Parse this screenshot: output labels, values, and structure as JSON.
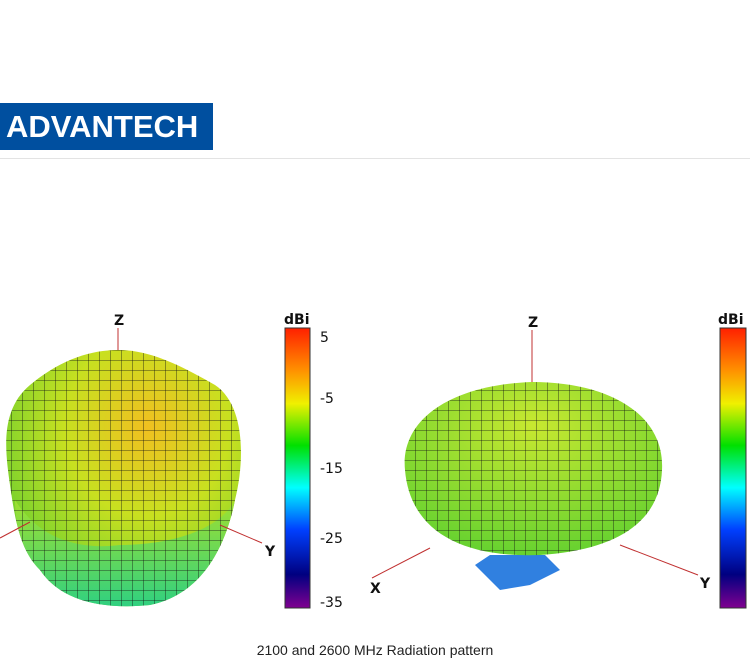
{
  "header": {
    "logo_text": "ADVANTECH",
    "brand_color": "#004f9f"
  },
  "plots": [
    {
      "axes": {
        "z": "Z",
        "y": "Y"
      },
      "colorbar": {
        "title": "dBi",
        "ticks": [
          "5",
          "-5",
          "-15",
          "-25",
          "-35"
        ]
      }
    },
    {
      "axes": {
        "z": "Z",
        "x": "X",
        "y": "Y"
      },
      "colorbar": {
        "title": "dBi"
      }
    }
  ],
  "colorbar_colors": [
    "#ff2000",
    "#ff9000",
    "#f0f000",
    "#00e000",
    "#00ffff",
    "#0040ff",
    "#0000a0",
    "#800090"
  ],
  "caption": "2100 and 2600 MHz Radiation pattern"
}
